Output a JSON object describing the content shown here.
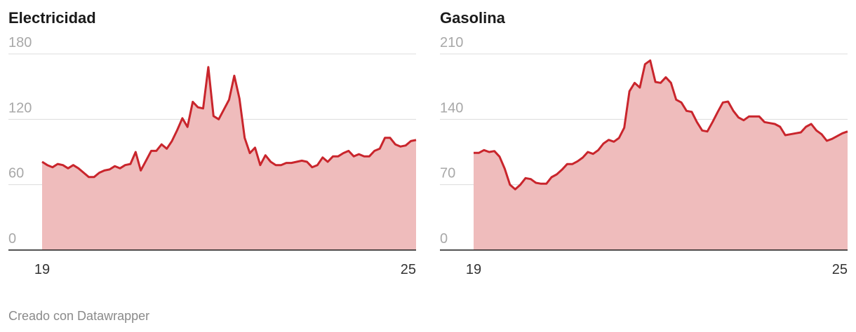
{
  "chart_data": [
    {
      "type": "area",
      "title": "Electricidad",
      "x": [
        19,
        19.083,
        19.167,
        19.25,
        19.333,
        19.417,
        19.5,
        19.583,
        19.667,
        19.75,
        19.833,
        19.917,
        20,
        20.083,
        20.167,
        20.25,
        20.333,
        20.417,
        20.5,
        20.583,
        20.667,
        20.75,
        20.833,
        20.917,
        21,
        21.083,
        21.167,
        21.25,
        21.333,
        21.417,
        21.5,
        21.583,
        21.667,
        21.75,
        21.833,
        21.917,
        22,
        22.083,
        22.167,
        22.25,
        22.333,
        22.417,
        22.5,
        22.583,
        22.667,
        22.75,
        22.833,
        22.917,
        23,
        23.083,
        23.167,
        23.25,
        23.333,
        23.417,
        23.5,
        23.583,
        23.667,
        23.75,
        23.833,
        23.917,
        24,
        24.083,
        24.167,
        24.25,
        24.333,
        24.417,
        24.5,
        24.583,
        24.667,
        24.75,
        24.833,
        24.917,
        25
      ],
      "values": [
        81,
        78,
        76,
        79,
        78,
        75,
        78,
        75,
        71,
        67,
        67,
        71,
        73,
        74,
        77,
        75,
        78,
        79,
        90,
        73,
        82,
        91,
        91,
        97,
        93,
        100,
        110,
        121,
        113,
        136,
        131,
        130,
        168,
        123,
        120,
        129,
        138,
        160,
        139,
        103,
        89,
        94,
        78,
        87,
        81,
        78,
        78,
        80,
        80,
        81,
        82,
        81,
        76,
        78,
        85,
        81,
        86,
        86,
        89,
        91,
        86,
        88,
        86,
        86,
        91,
        93,
        103,
        103,
        97,
        95,
        96,
        100,
        101
      ],
      "color": "#c9252c",
      "fill": "#efbcbc",
      "xlim": [
        19,
        25
      ],
      "xticks": [
        19,
        25
      ],
      "ylim": [
        0,
        180
      ],
      "yticks": [
        0,
        60,
        120,
        180
      ],
      "grid": true
    },
    {
      "type": "area",
      "title": "Gasolina",
      "x": [
        19,
        19.083,
        19.167,
        19.25,
        19.333,
        19.417,
        19.5,
        19.583,
        19.667,
        19.75,
        19.833,
        19.917,
        20,
        20.083,
        20.167,
        20.25,
        20.333,
        20.417,
        20.5,
        20.583,
        20.667,
        20.75,
        20.833,
        20.917,
        21,
        21.083,
        21.167,
        21.25,
        21.333,
        21.417,
        21.5,
        21.583,
        21.667,
        21.75,
        21.833,
        21.917,
        22,
        22.083,
        22.167,
        22.25,
        22.333,
        22.417,
        22.5,
        22.583,
        22.667,
        22.75,
        22.833,
        22.917,
        23,
        23.083,
        23.167,
        23.25,
        23.333,
        23.417,
        23.5,
        23.583,
        23.667,
        23.75,
        23.833,
        23.917,
        24,
        24.083,
        24.167,
        24.25,
        24.333,
        24.417,
        24.5,
        24.583,
        24.667,
        24.75,
        24.833,
        24.917,
        25
      ],
      "values": [
        104,
        104,
        107,
        105,
        106,
        100,
        87,
        70,
        65,
        70,
        77,
        76,
        72,
        71,
        71,
        78,
        81,
        86,
        92,
        92,
        95,
        99,
        105,
        103,
        107,
        114,
        118,
        116,
        120,
        131,
        170,
        179,
        174,
        199,
        203,
        180,
        179,
        185,
        179,
        161,
        158,
        149,
        148,
        137,
        128,
        127,
        137,
        148,
        158,
        159,
        149,
        142,
        139,
        143,
        143,
        143,
        137,
        136,
        135,
        132,
        123,
        124,
        125,
        126,
        132,
        135,
        128,
        124,
        117,
        119,
        122,
        125,
        127
      ],
      "color": "#c9252c",
      "fill": "#efbcbc",
      "xlim": [
        19,
        25
      ],
      "xticks": [
        19,
        25
      ],
      "ylim": [
        0,
        210
      ],
      "yticks": [
        0,
        70,
        140,
        210
      ],
      "grid": true
    }
  ],
  "footer": "Creado con Datawrapper"
}
